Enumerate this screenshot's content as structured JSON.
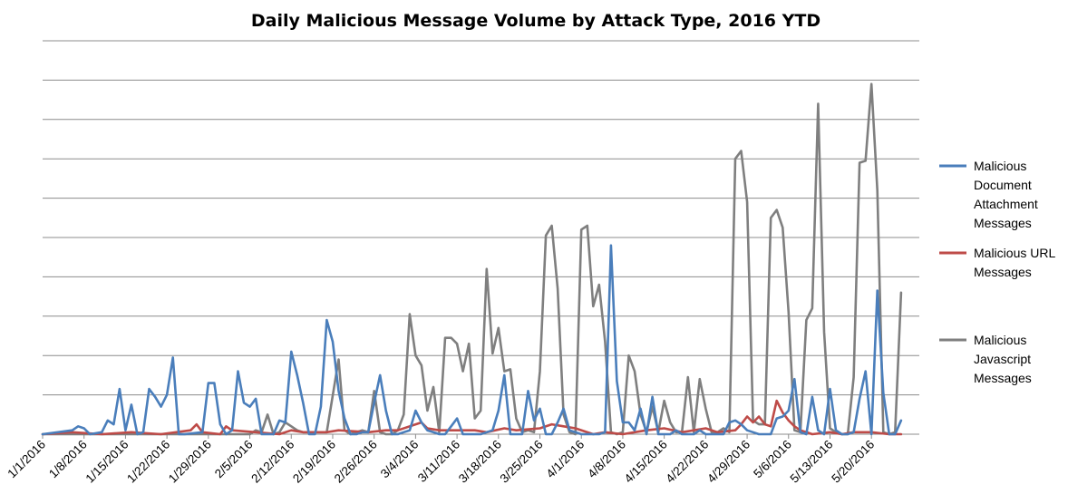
{
  "chart_data": {
    "type": "line",
    "title": "Daily Malicious Message Volume by Attack Type, 2016 YTD",
    "xlabel": "",
    "ylabel": "",
    "y_tick_labels_shown": false,
    "grid": true,
    "legend_position": "right",
    "x_tick_labels": [
      "1/1/2016",
      "1/8/2016",
      "1/15/2016",
      "1/22/2016",
      "1/29/2016",
      "2/5/2016",
      "2/12/2016",
      "2/19/2016",
      "2/26/2016",
      "3/4/2016",
      "3/11/2016",
      "3/18/2016",
      "3/25/2016",
      "4/1/2016",
      "4/8/2016",
      "4/15/2016",
      "4/22/2016",
      "4/29/2016",
      "5/6/2016",
      "5/13/2016",
      "5/20/2016"
    ],
    "day_count": 150,
    "y_range": [
      0,
      10
    ],
    "gridlines": 10,
    "series": [
      {
        "name": "Malicious Document Attachment Messages",
        "color": "#4a7ebb",
        "points": [
          [
            0,
            0
          ],
          [
            5,
            0.1
          ],
          [
            6,
            0.2
          ],
          [
            7,
            0.15
          ],
          [
            8,
            0
          ],
          [
            10,
            0.05
          ],
          [
            11,
            0.35
          ],
          [
            12,
            0.25
          ],
          [
            13,
            1.15
          ],
          [
            14,
            0.1
          ],
          [
            15,
            0.75
          ],
          [
            16,
            0
          ],
          [
            17,
            0.05
          ],
          [
            18,
            1.15
          ],
          [
            19,
            0.95
          ],
          [
            20,
            0.7
          ],
          [
            21,
            1
          ],
          [
            22,
            1.95
          ],
          [
            23,
            0
          ],
          [
            24,
            0
          ],
          [
            27,
            0.05
          ],
          [
            28,
            1.3
          ],
          [
            29,
            1.3
          ],
          [
            30,
            0.25
          ],
          [
            31,
            0
          ],
          [
            32,
            0.1
          ],
          [
            33,
            1.6
          ],
          [
            34,
            0.8
          ],
          [
            35,
            0.7
          ],
          [
            36,
            0.9
          ],
          [
            37,
            0
          ],
          [
            38,
            0
          ],
          [
            39,
            0
          ],
          [
            40,
            0.35
          ],
          [
            41,
            0.3
          ],
          [
            42,
            2.1
          ],
          [
            43,
            1.5
          ],
          [
            44,
            0.8
          ],
          [
            45,
            0
          ],
          [
            46,
            0
          ],
          [
            47,
            0.7
          ],
          [
            48,
            2.9
          ],
          [
            49,
            2.35
          ],
          [
            50,
            1.1
          ],
          [
            51,
            0.4
          ],
          [
            52,
            0
          ],
          [
            53,
            0
          ],
          [
            54,
            0.05
          ],
          [
            55,
            0.05
          ],
          [
            56,
            0.8
          ],
          [
            57,
            1.5
          ],
          [
            58,
            0.6
          ],
          [
            59,
            0
          ],
          [
            60,
            0
          ],
          [
            61,
            0.05
          ],
          [
            62,
            0.1
          ],
          [
            63,
            0.6
          ],
          [
            64,
            0.3
          ],
          [
            65,
            0.1
          ],
          [
            66,
            0.05
          ],
          [
            67,
            0
          ],
          [
            68,
            0
          ],
          [
            69,
            0.2
          ],
          [
            70,
            0.4
          ],
          [
            71,
            0
          ],
          [
            72,
            0
          ],
          [
            73,
            0
          ],
          [
            74,
            0
          ],
          [
            75,
            0.05
          ],
          [
            76,
            0.1
          ],
          [
            77,
            0.6
          ],
          [
            78,
            1.5
          ],
          [
            79,
            0
          ],
          [
            80,
            0
          ],
          [
            81,
            0
          ],
          [
            82,
            1.1
          ],
          [
            83,
            0.35
          ],
          [
            84,
            0.65
          ],
          [
            85,
            0
          ],
          [
            86,
            0
          ],
          [
            87,
            0.3
          ],
          [
            88,
            0.65
          ],
          [
            89,
            0.1
          ],
          [
            90,
            0.05
          ],
          [
            91,
            0
          ],
          [
            92,
            0
          ],
          [
            93,
            0
          ],
          [
            94,
            0
          ],
          [
            95,
            0.05
          ],
          [
            96,
            4.8
          ],
          [
            97,
            1.35
          ],
          [
            98,
            0.3
          ],
          [
            99,
            0.3
          ],
          [
            100,
            0.1
          ],
          [
            101,
            0.65
          ],
          [
            102,
            0
          ],
          [
            103,
            0.95
          ],
          [
            104,
            0
          ],
          [
            105,
            0
          ],
          [
            106,
            0
          ],
          [
            107,
            0.1
          ],
          [
            108,
            0
          ],
          [
            109,
            0
          ],
          [
            110,
            0
          ],
          [
            111,
            0.1
          ],
          [
            112,
            0
          ],
          [
            113,
            0
          ],
          [
            114,
            0
          ],
          [
            115,
            0
          ],
          [
            116,
            0.3
          ],
          [
            117,
            0.35
          ],
          [
            118,
            0.25
          ],
          [
            119,
            0.1
          ],
          [
            120,
            0.05
          ],
          [
            121,
            0
          ],
          [
            122,
            0
          ],
          [
            123,
            0
          ],
          [
            124,
            0.4
          ],
          [
            125,
            0.45
          ],
          [
            126,
            0.6
          ],
          [
            127,
            1.4
          ],
          [
            128,
            0.05
          ],
          [
            129,
            0
          ],
          [
            130,
            0.95
          ],
          [
            131,
            0.1
          ],
          [
            132,
            0
          ],
          [
            133,
            1.15
          ],
          [
            134,
            0.1
          ],
          [
            135,
            0
          ],
          [
            136,
            0
          ],
          [
            137,
            0.05
          ],
          [
            138,
            0.9
          ],
          [
            139,
            1.6
          ],
          [
            140,
            0
          ],
          [
            141,
            3.65
          ],
          [
            142,
            1.05
          ],
          [
            143,
            0
          ],
          [
            144,
            0
          ],
          [
            145,
            0.35
          ]
        ]
      },
      {
        "name": "Malicious URL Messages",
        "color": "#be4b48",
        "points": [
          [
            0,
            0
          ],
          [
            5,
            0.05
          ],
          [
            10,
            0
          ],
          [
            15,
            0.05
          ],
          [
            20,
            0
          ],
          [
            25,
            0.1
          ],
          [
            26,
            0.25
          ],
          [
            27,
            0.05
          ],
          [
            30,
            0
          ],
          [
            31,
            0.2
          ],
          [
            32,
            0.1
          ],
          [
            36,
            0.05
          ],
          [
            40,
            0
          ],
          [
            42,
            0.1
          ],
          [
            44,
            0.05
          ],
          [
            48,
            0.05
          ],
          [
            50,
            0.1
          ],
          [
            55,
            0.05
          ],
          [
            58,
            0.1
          ],
          [
            60,
            0.1
          ],
          [
            64,
            0.3
          ],
          [
            65,
            0.15
          ],
          [
            67,
            0.1
          ],
          [
            70,
            0.1
          ],
          [
            73,
            0.1
          ],
          [
            75,
            0.05
          ],
          [
            78,
            0.15
          ],
          [
            80,
            0.1
          ],
          [
            84,
            0.15
          ],
          [
            86,
            0.25
          ],
          [
            88,
            0.2
          ],
          [
            90,
            0.15
          ],
          [
            93,
            0
          ],
          [
            95,
            0.05
          ],
          [
            98,
            0
          ],
          [
            100,
            0.05
          ],
          [
            102,
            0.1
          ],
          [
            105,
            0.15
          ],
          [
            108,
            0.05
          ],
          [
            110,
            0.1
          ],
          [
            112,
            0.15
          ],
          [
            114,
            0.05
          ],
          [
            117,
            0.1
          ],
          [
            118,
            0.25
          ],
          [
            119,
            0.45
          ],
          [
            120,
            0.3
          ],
          [
            121,
            0.45
          ],
          [
            122,
            0.25
          ],
          [
            123,
            0.2
          ],
          [
            124,
            0.85
          ],
          [
            125,
            0.55
          ],
          [
            126,
            0.35
          ],
          [
            127,
            0.2
          ],
          [
            128,
            0.1
          ],
          [
            129,
            0.05
          ],
          [
            130,
            0
          ],
          [
            133,
            0.05
          ],
          [
            135,
            0
          ],
          [
            137,
            0.05
          ],
          [
            140,
            0.05
          ],
          [
            143,
            0
          ],
          [
            145,
            0
          ]
        ]
      },
      {
        "name": "Malicious Javascript Messages",
        "color": "#7f7f7f",
        "points": [
          [
            0,
            0
          ],
          [
            35,
            0
          ],
          [
            36,
            0.1
          ],
          [
            37,
            0.05
          ],
          [
            38,
            0.5
          ],
          [
            39,
            0
          ],
          [
            40,
            0.05
          ],
          [
            41,
            0.3
          ],
          [
            42,
            0.2
          ],
          [
            43,
            0.1
          ],
          [
            44,
            0.05
          ],
          [
            48,
            0.05
          ],
          [
            50,
            1.9
          ],
          [
            51,
            0.1
          ],
          [
            52,
            0
          ],
          [
            53,
            0.05
          ],
          [
            54,
            0.1
          ],
          [
            55,
            0.05
          ],
          [
            56,
            1.1
          ],
          [
            57,
            0.05
          ],
          [
            58,
            0
          ],
          [
            59,
            0
          ],
          [
            60,
            0.1
          ],
          [
            61,
            0.5
          ],
          [
            62,
            3.05
          ],
          [
            63,
            2
          ],
          [
            64,
            1.75
          ],
          [
            65,
            0.6
          ],
          [
            66,
            1.2
          ],
          [
            67,
            0.05
          ],
          [
            68,
            2.45
          ],
          [
            69,
            2.45
          ],
          [
            70,
            2.3
          ],
          [
            71,
            1.6
          ],
          [
            72,
            2.3
          ],
          [
            73,
            0.4
          ],
          [
            74,
            0.6
          ],
          [
            75,
            4.2
          ],
          [
            76,
            2.05
          ],
          [
            77,
            2.7
          ],
          [
            78,
            1.6
          ],
          [
            79,
            1.65
          ],
          [
            80,
            0.4
          ],
          [
            81,
            0.05
          ],
          [
            82,
            0.1
          ],
          [
            83,
            0.05
          ],
          [
            84,
            1.6
          ],
          [
            85,
            5.05
          ],
          [
            86,
            5.3
          ],
          [
            87,
            3.7
          ],
          [
            88,
            0.5
          ],
          [
            89,
            0.05
          ],
          [
            90,
            0
          ],
          [
            91,
            5.2
          ],
          [
            92,
            5.3
          ],
          [
            93,
            3.25
          ],
          [
            94,
            3.8
          ],
          [
            95,
            2.35
          ],
          [
            96,
            0.05
          ],
          [
            97,
            0
          ],
          [
            98,
            0.05
          ],
          [
            99,
            2
          ],
          [
            100,
            1.6
          ],
          [
            101,
            0.5
          ],
          [
            102,
            0.05
          ],
          [
            103,
            0.7
          ],
          [
            104,
            0.05
          ],
          [
            105,
            0.85
          ],
          [
            106,
            0.3
          ],
          [
            107,
            0.05
          ],
          [
            108,
            0.05
          ],
          [
            109,
            1.45
          ],
          [
            110,
            0.05
          ],
          [
            111,
            1.4
          ],
          [
            112,
            0.65
          ],
          [
            113,
            0.05
          ],
          [
            114,
            0.05
          ],
          [
            115,
            0.15
          ],
          [
            116,
            0.05
          ],
          [
            117,
            7
          ],
          [
            118,
            7.2
          ],
          [
            119,
            5.9
          ],
          [
            120,
            0.35
          ],
          [
            121,
            0.25
          ],
          [
            122,
            0.25
          ],
          [
            123,
            5.5
          ],
          [
            124,
            5.7
          ],
          [
            125,
            5.25
          ],
          [
            126,
            3.1
          ],
          [
            127,
            0.1
          ],
          [
            128,
            0.05
          ],
          [
            129,
            2.9
          ],
          [
            130,
            3.2
          ],
          [
            131,
            8.4
          ],
          [
            132,
            2.6
          ],
          [
            133,
            0.15
          ],
          [
            134,
            0.05
          ],
          [
            135,
            0
          ],
          [
            136,
            0
          ],
          [
            137,
            1.45
          ],
          [
            138,
            6.9
          ],
          [
            139,
            6.95
          ],
          [
            140,
            8.9
          ],
          [
            141,
            6.2
          ],
          [
            142,
            0.05
          ],
          [
            143,
            0
          ],
          [
            144,
            0.05
          ],
          [
            145,
            3.6
          ]
        ]
      }
    ]
  }
}
